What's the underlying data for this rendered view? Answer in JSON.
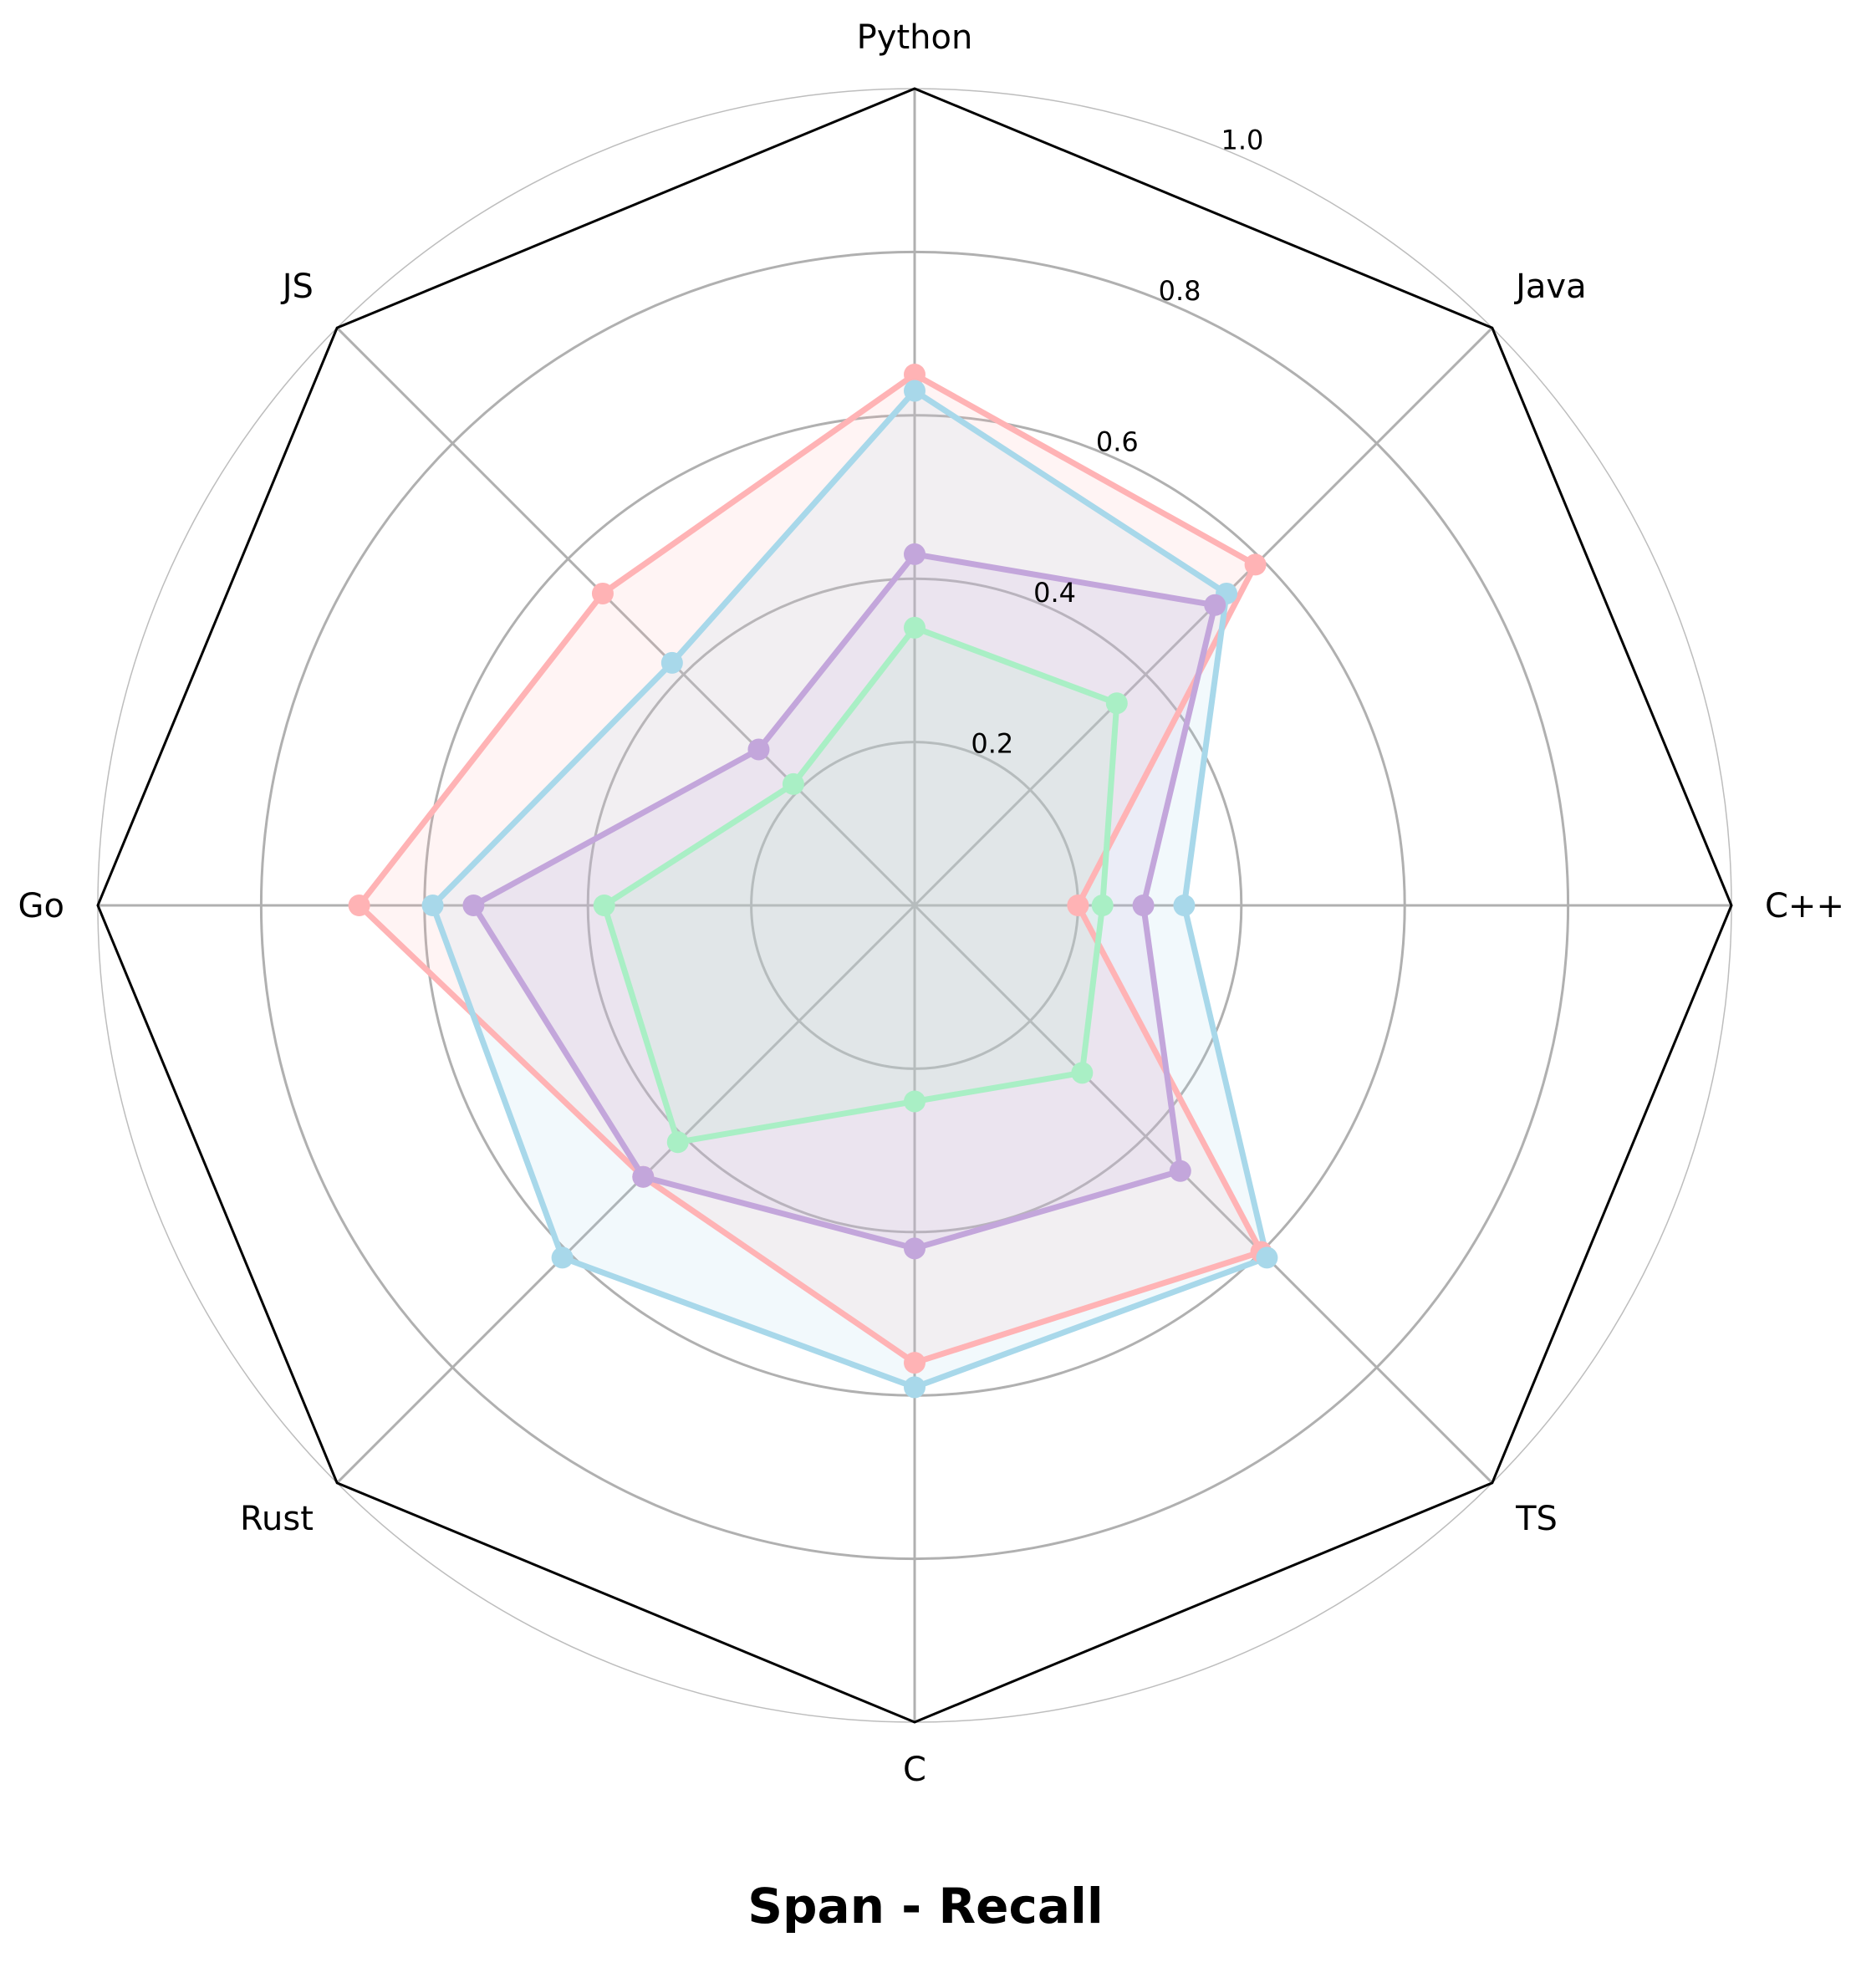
{
  "chart_data": {
    "type": "radar",
    "title": "Span - Recall",
    "axes": [
      "Python",
      "Java",
      "C++",
      "TS",
      "C",
      "Rust",
      "Go",
      "JS"
    ],
    "rlim": [
      0,
      1.0
    ],
    "rticks": [
      0.2,
      0.4,
      0.6,
      0.8,
      1.0
    ],
    "rtick_labels": [
      "0.2",
      "0.4",
      "0.6",
      "0.8",
      "1.0"
    ],
    "grid": true,
    "legend": "none",
    "series": [
      {
        "color": "#FFB3B5",
        "values": [
          0.65,
          0.59,
          0.2,
          0.6,
          0.56,
          0.47,
          0.68,
          0.54
        ]
      },
      {
        "color": "#A8D8EA",
        "values": [
          0.63,
          0.54,
          0.33,
          0.61,
          0.59,
          0.61,
          0.59,
          0.42
        ]
      },
      {
        "color": "#C3A6DB",
        "values": [
          0.43,
          0.52,
          0.28,
          0.46,
          0.42,
          0.47,
          0.54,
          0.27
        ]
      },
      {
        "color": "#A9EFC5",
        "values": [
          0.34,
          0.35,
          0.23,
          0.29,
          0.24,
          0.41,
          0.38,
          0.21
        ]
      }
    ]
  }
}
